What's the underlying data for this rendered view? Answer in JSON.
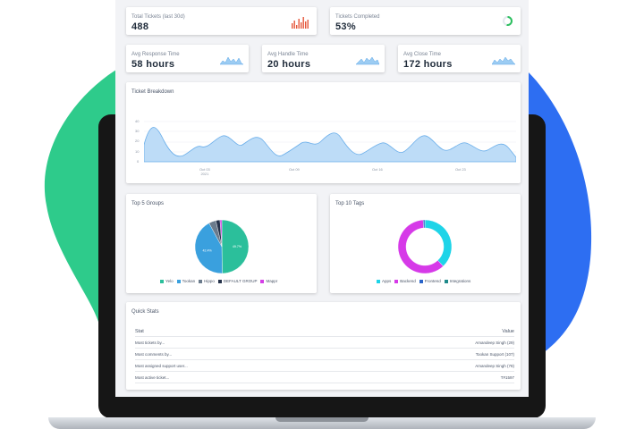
{
  "metrics": {
    "total_tickets": {
      "label": "Total Tickets (last 30d)",
      "value": "488"
    },
    "tickets_completed": {
      "label": "Tickets Completed",
      "value": "53%",
      "percent": 53
    },
    "avg_response": {
      "label": "Avg Response Time",
      "value": "58 hours"
    },
    "avg_handle": {
      "label": "Avg Handle Time",
      "value": "20 hours"
    },
    "avg_close": {
      "label": "Avg Close Time",
      "value": "172 hours"
    }
  },
  "breakdown": {
    "title": "Ticket Breakdown",
    "y_ticks": [
      "40",
      "30",
      "20",
      "10",
      "0"
    ],
    "x_ticks": [
      "Oct 03\n2021",
      "Oct 09",
      "Oct 16",
      "Oct 23",
      "Oct 30"
    ]
  },
  "groups": {
    "title": "Top 5 Groups",
    "slices": [
      {
        "name": "Yelo",
        "percent": 49.7,
        "label": "49.7%",
        "color": "#2bbf9b"
      },
      {
        "name": "Tookan",
        "percent": 42.4,
        "label": "42.4%",
        "color": "#3aa0de"
      },
      {
        "name": "Hippo",
        "percent": 4.3,
        "label": "",
        "color": "#6b7b8c"
      },
      {
        "name": "DEFAULT GROUP",
        "percent": 2.5,
        "label": "",
        "color": "#25324a"
      },
      {
        "name": "Mappr",
        "percent": 1.1,
        "label": "",
        "color": "#d43ee6"
      }
    ]
  },
  "tags": {
    "title": "Top 10 Tags",
    "slices": [
      {
        "name": "Apps",
        "percent": 38,
        "color": "#1ed4e8"
      },
      {
        "name": "Backend",
        "percent": 61,
        "color": "#d63ae8"
      },
      {
        "name": "Frontend",
        "percent": 1,
        "color": "#2a64c9"
      },
      {
        "name": "Integrations",
        "percent": 0,
        "color": "#1f8a8a"
      }
    ]
  },
  "quick_stats": {
    "title": "Quick Stats",
    "col_stat": "Stat",
    "col_value": "Value",
    "rows": [
      {
        "stat": "Most tickets by...",
        "value": "Amandeep Singh (29)"
      },
      {
        "stat": "Most comments by...",
        "value": "Tookan Support (107)"
      },
      {
        "stat": "Most assigned support user...",
        "value": "Amandeep Singh (78)"
      },
      {
        "stat": "Most active ticket...",
        "value": "T#1597"
      }
    ]
  },
  "colors": {
    "green_blob": "#2ecb8b",
    "blue_blob": "#2d6ef2",
    "bar_red": "#e5573b",
    "area_blue": "#7fbdf0"
  }
}
